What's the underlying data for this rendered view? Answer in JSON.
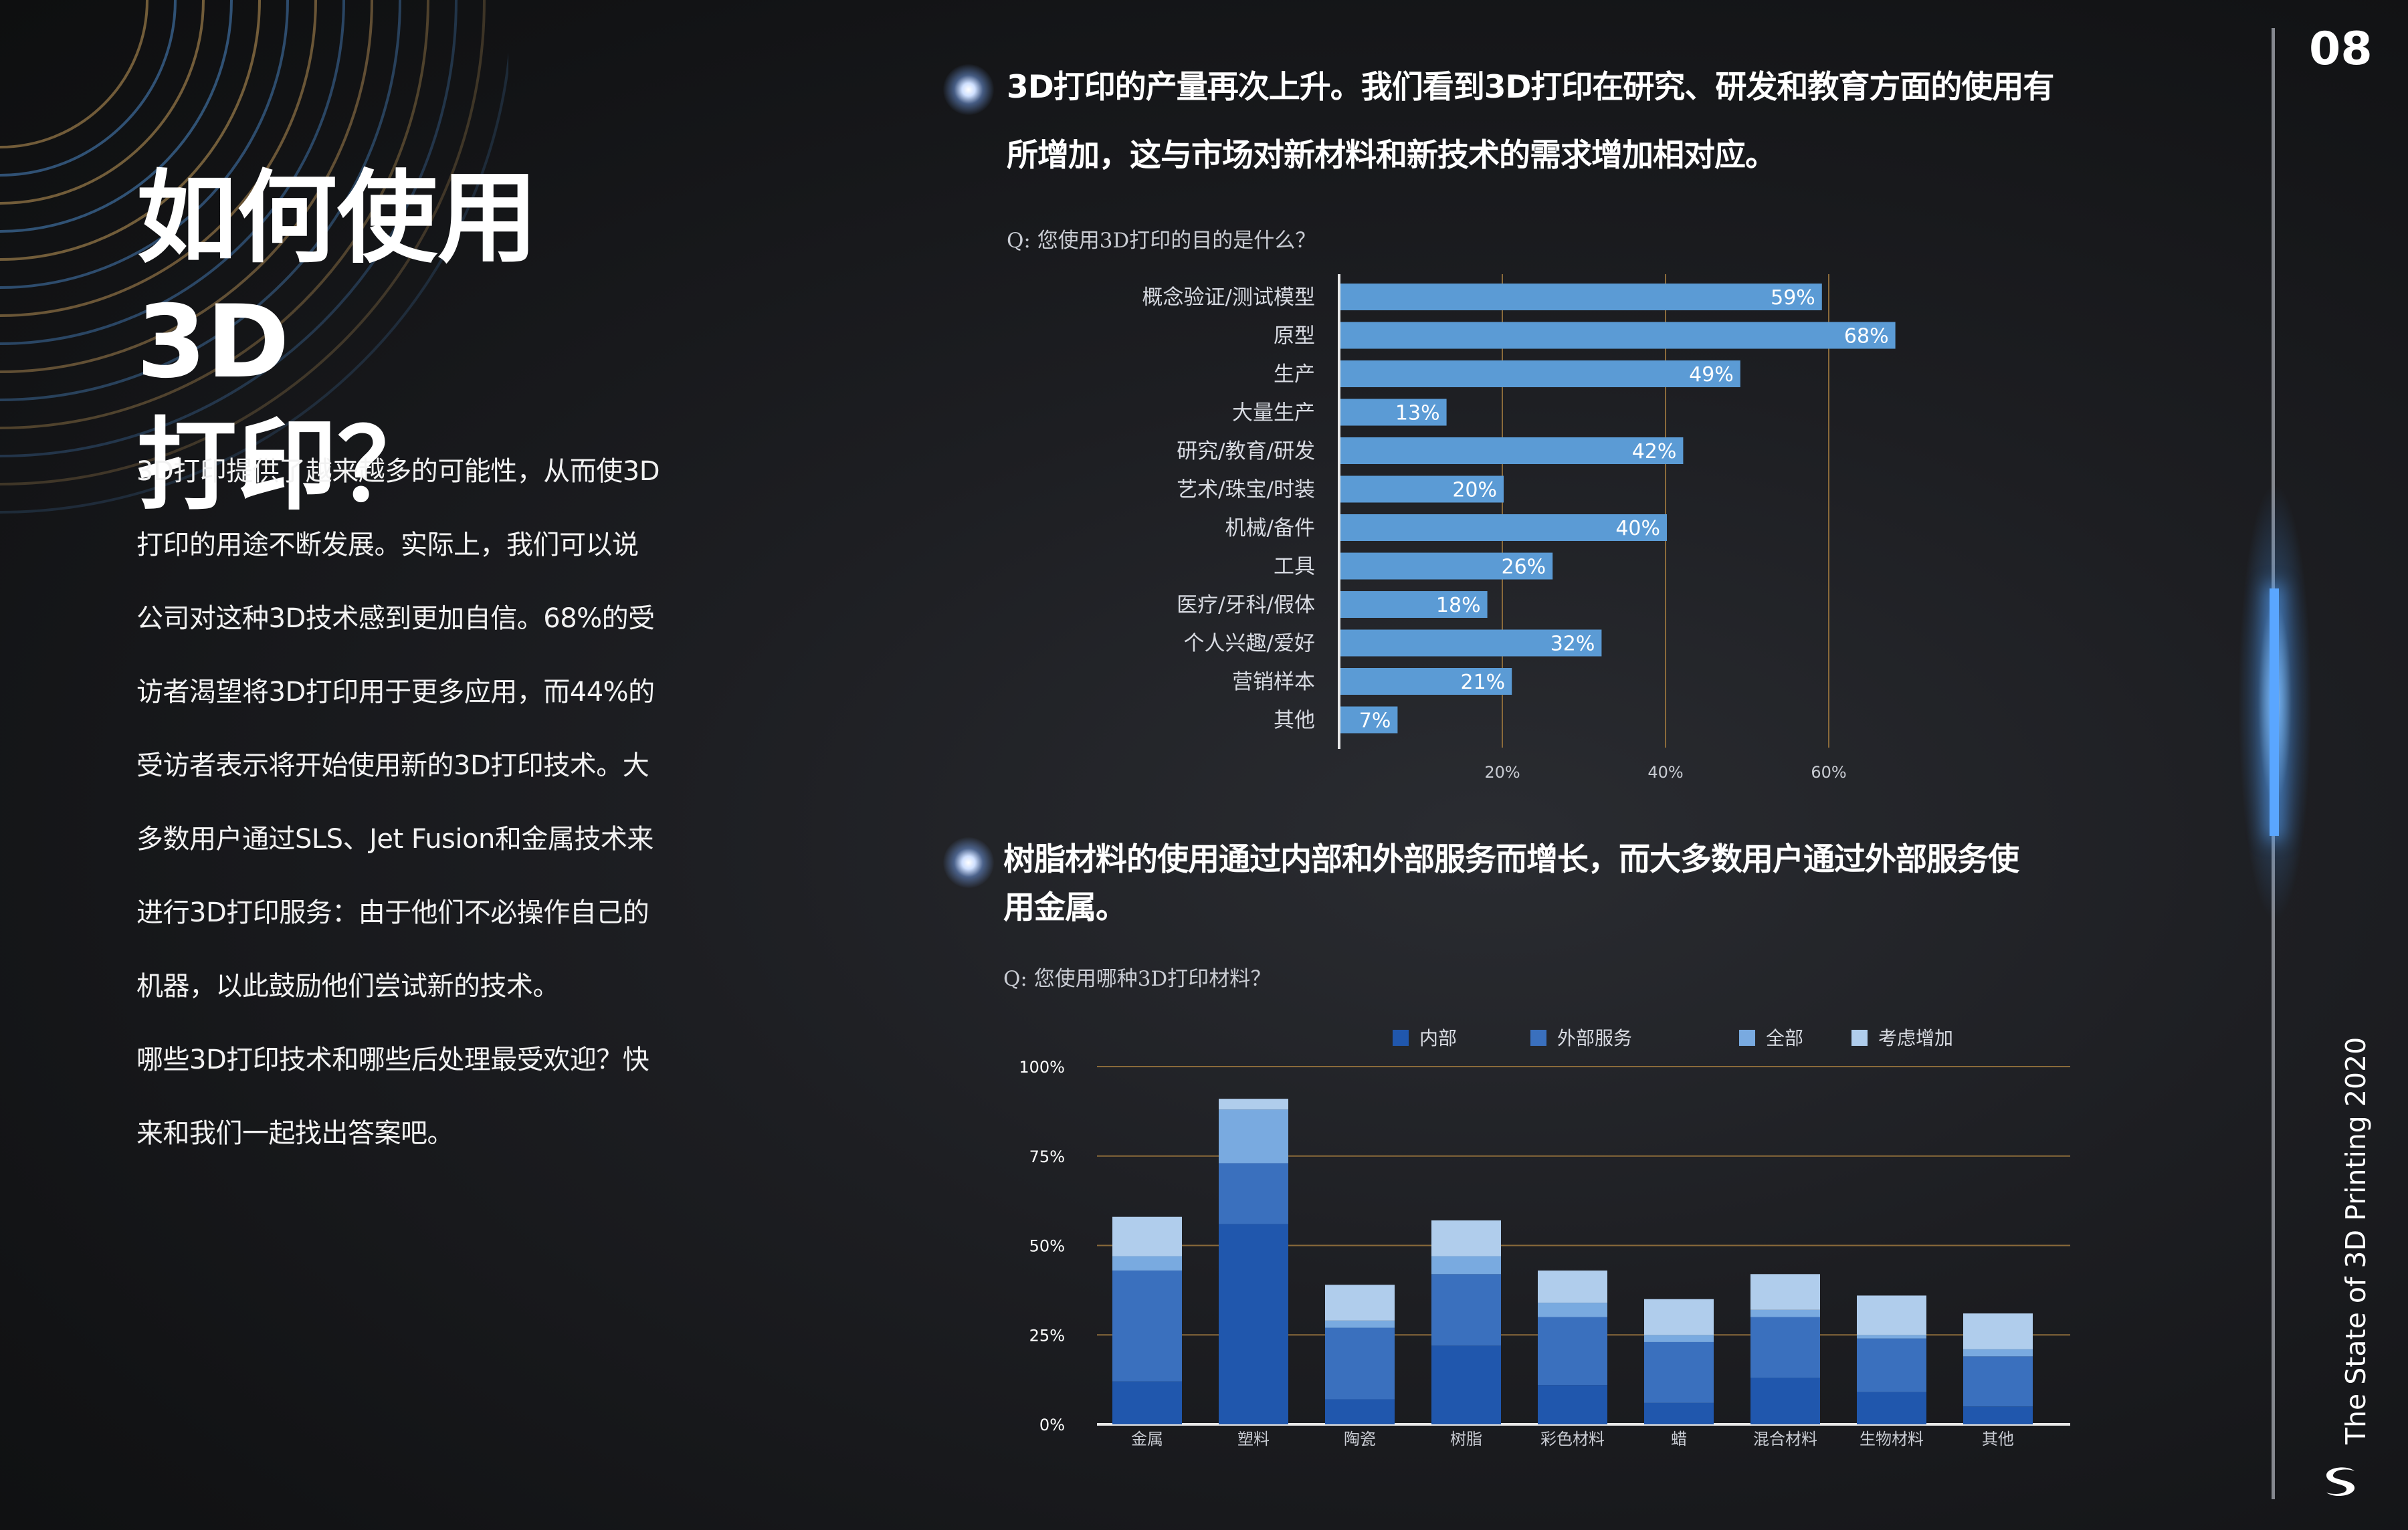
{
  "page_number": "08",
  "side_title": "The State of 3D Printing 2020",
  "title": [
    "如何使用3D",
    "打印？"
  ],
  "body_lines": [
    "3D打印提供了越来越多的可能性，从而使3D",
    "打印的用途不断发展。实际上，我们可以说",
    "公司对这种3D技术感到更加自信。68%的受",
    "访者渴望将3D打印用于更多应用，而44%的",
    "受访者表示将开始使用新的3D打印技术。大",
    "多数用户通过SLS、Jet Fusion和金属技术来",
    "进行3D打印服务：由于他们不必操作自己的",
    "机器，以此鼓励他们尝试新的技术。"
  ],
  "body_lines2": [
    "哪些3D打印技术和哪些后处理最受欢迎？快",
    "来和我们一起找出答案吧。"
  ],
  "section1": {
    "heading_lines": [
      "3D打印的产量再次上升。我们看到3D打印在研究、研发和教育方面的使用有",
      "所增加，这与市场对新材料和新技术的需求增加相对应。"
    ],
    "question": "Q: 您使用3D打印的目的是什么？"
  },
  "section2": {
    "heading_lines": [
      "树脂材料的使用通过内部和外部服务而增长，而大多数用户通过外部服务使",
      "用金属。"
    ],
    "question": "Q: 您使用哪种3D打印材料？"
  },
  "colors": {
    "bar_blue": "#5b9bd5",
    "inner": "#2057ad",
    "external": "#3a70be",
    "all": "#79aae0",
    "considering": "#b0cdec",
    "gridline": "#8a6a3a"
  },
  "chart_data": [
    {
      "type": "bar",
      "orientation": "horizontal",
      "categories": [
        "概念验证/测试模型",
        "原型",
        "生产",
        "大量生产",
        "研究/教育/研发",
        "艺术/珠宝/时装",
        "机械/备件",
        "工具",
        "医疗/牙科/假体",
        "个人兴趣/爱好",
        "营销样本",
        "其他"
      ],
      "values": [
        59,
        68,
        49,
        13,
        42,
        20,
        40,
        26,
        18,
        32,
        21,
        7
      ],
      "value_labels": [
        "59%",
        "68%",
        "49%",
        "13%",
        "42%",
        "20%",
        "40%",
        "26%",
        "18%",
        "32%",
        "21%",
        "7%"
      ],
      "x_ticks": [
        "20%",
        "40%",
        "60%"
      ],
      "xlim": [
        0,
        75
      ],
      "grid": true
    },
    {
      "type": "bar",
      "stacked": true,
      "categories": [
        "金属",
        "塑料",
        "陶瓷",
        "树脂",
        "彩色材料",
        "蜡",
        "混合材料",
        "生物材料",
        "其他"
      ],
      "series": [
        {
          "name": "内部",
          "values": [
            12,
            56,
            7,
            22,
            11,
            6,
            13,
            9,
            5
          ]
        },
        {
          "name": "外部服务",
          "values": [
            31,
            17,
            20,
            20,
            19,
            17,
            17,
            15,
            14
          ]
        },
        {
          "name": "全部",
          "values": [
            4,
            15,
            2,
            5,
            4,
            2,
            2,
            1,
            2
          ]
        },
        {
          "name": "考虑增加",
          "values": [
            11,
            3,
            10,
            10,
            9,
            10,
            10,
            11,
            10
          ]
        }
      ],
      "y_ticks": [
        "0%",
        "25%",
        "50%",
        "75%",
        "100%"
      ],
      "ylim": [
        0,
        100
      ],
      "legend_position": "top",
      "grid": true
    }
  ]
}
